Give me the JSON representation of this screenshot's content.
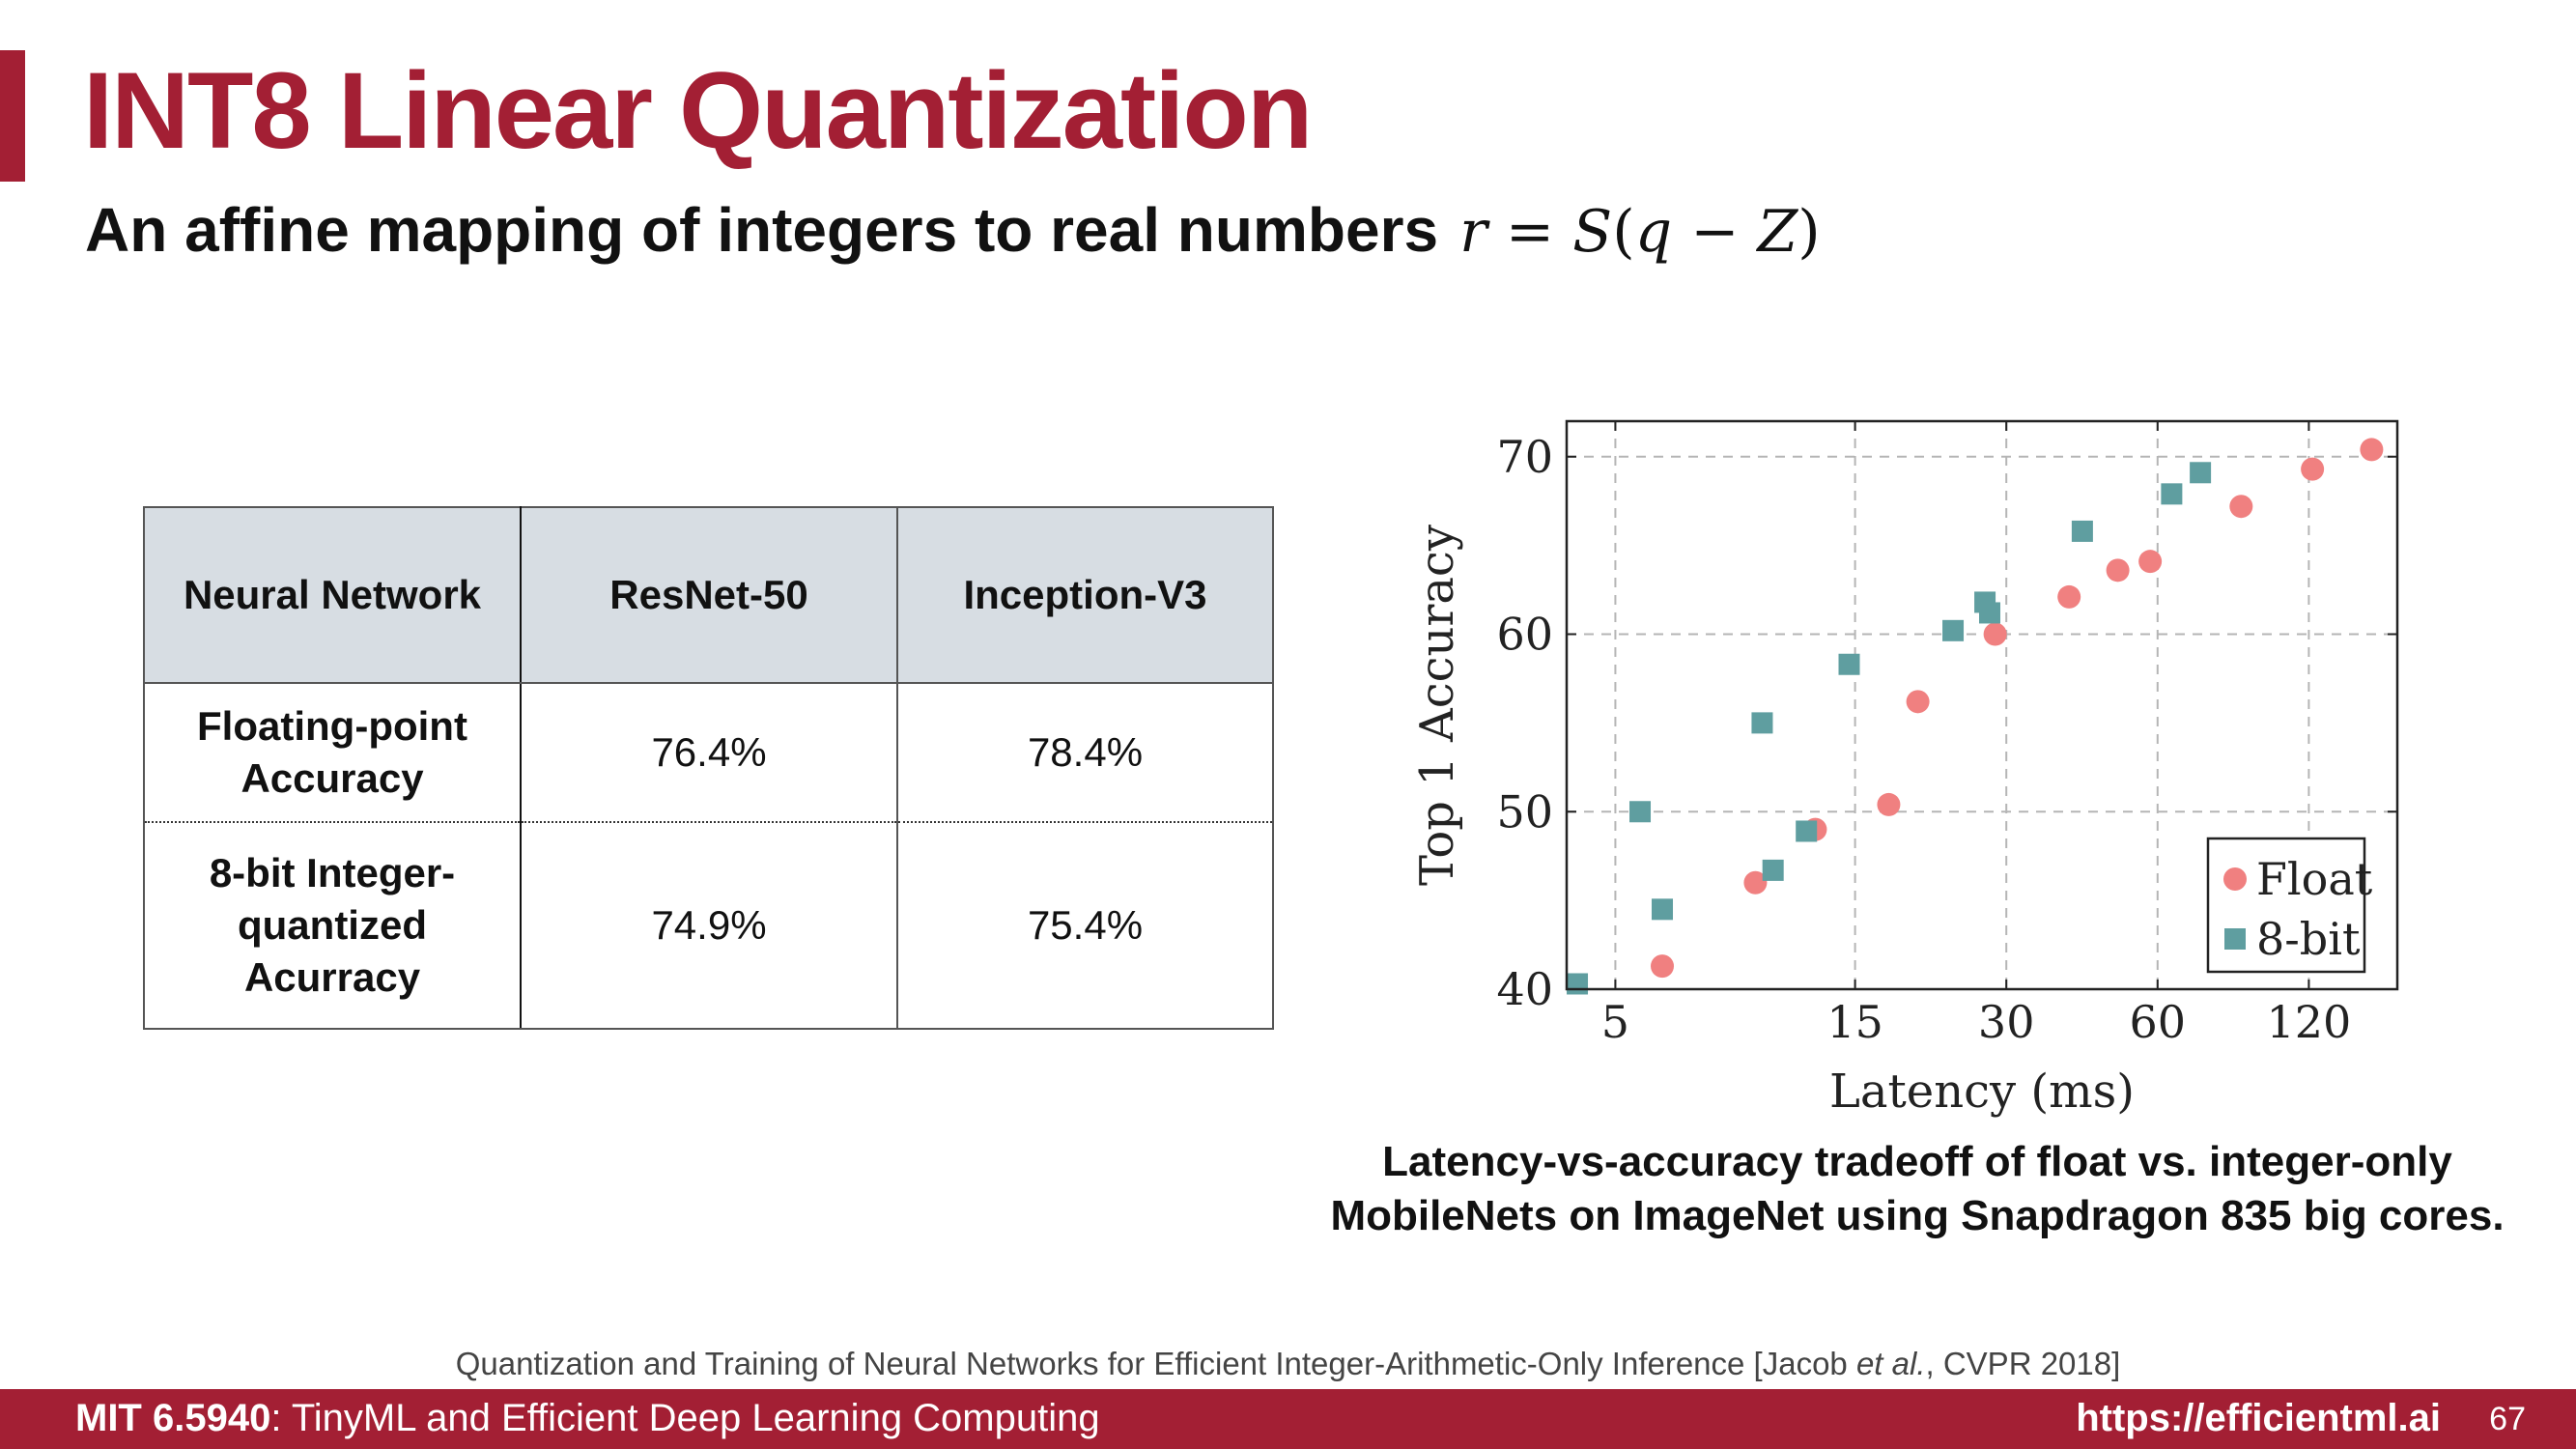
{
  "slide": {
    "title": "INT8 Linear Quantization",
    "subtitle": "An affine mapping of integers to real numbers",
    "formula": {
      "r": "r",
      "eq": " = ",
      "S": "S",
      "open": "(",
      "q": "q",
      "minus": " − ",
      "Z": "Z",
      "close": ")"
    },
    "accent_color": "#a31f34"
  },
  "table": {
    "headers": [
      "Neural Network",
      "ResNet-50",
      "Inception-V3"
    ],
    "rows": [
      {
        "label": "Floating-point Accuracy",
        "values": [
          "76.4%",
          "78.4%"
        ]
      },
      {
        "label": "8-bit Integer-quantized Acurracy",
        "values": [
          "74.9%",
          "75.4%"
        ]
      }
    ]
  },
  "chart_data": {
    "type": "scatter",
    "xlabel": "Latency (ms)",
    "ylabel": "Top 1 Accuracy",
    "x_scale": "log",
    "xlim": [
      4,
      180
    ],
    "ylim": [
      40,
      72
    ],
    "x_ticks": [
      5,
      15,
      30,
      60,
      120
    ],
    "y_ticks": [
      40,
      50,
      60,
      70
    ],
    "grid": true,
    "legend_position": "bottom-right",
    "series": [
      {
        "name": "Float",
        "color": "#f08080",
        "marker": "circle",
        "points": [
          [
            6.2,
            41.3
          ],
          [
            9.5,
            46.0
          ],
          [
            12.5,
            49.0
          ],
          [
            17.5,
            50.4
          ],
          [
            20,
            56.2
          ],
          [
            28.5,
            60.0
          ],
          [
            40,
            62.1
          ],
          [
            50,
            63.6
          ],
          [
            58,
            64.1
          ],
          [
            88,
            67.2
          ],
          [
            122,
            69.3
          ],
          [
            160,
            70.4
          ]
        ]
      },
      {
        "name": "8-bit",
        "color": "#5f9ea0",
        "marker": "square",
        "points": [
          [
            4.2,
            40.3
          ],
          [
            5.6,
            50.0
          ],
          [
            6.2,
            44.5
          ],
          [
            9.8,
            55.0
          ],
          [
            10.3,
            46.7
          ],
          [
            12.0,
            48.9
          ],
          [
            14.6,
            58.3
          ],
          [
            23.5,
            60.2
          ],
          [
            27.2,
            61.8
          ],
          [
            27.8,
            61.2
          ],
          [
            42.5,
            65.8
          ],
          [
            64,
            67.9
          ],
          [
            73,
            69.1
          ]
        ]
      }
    ]
  },
  "caption": {
    "line1": "Latency-vs-accuracy tradeoff of float vs. integer-only",
    "line2": "MobileNets on ImageNet using Snapdragon 835 big cores."
  },
  "reference": {
    "text": "Quantization and Training of Neural Networks for Efficient Integer-Arithmetic-Only Inference  [Jacob ",
    "etal": "et al.",
    "tail": ", CVPR 2018]"
  },
  "footer": {
    "course_code": "MIT 6.5940",
    "course_name": ": TinyML and Efficient Deep Learning Computing",
    "url": "https://efficientml.ai",
    "page": "67"
  }
}
